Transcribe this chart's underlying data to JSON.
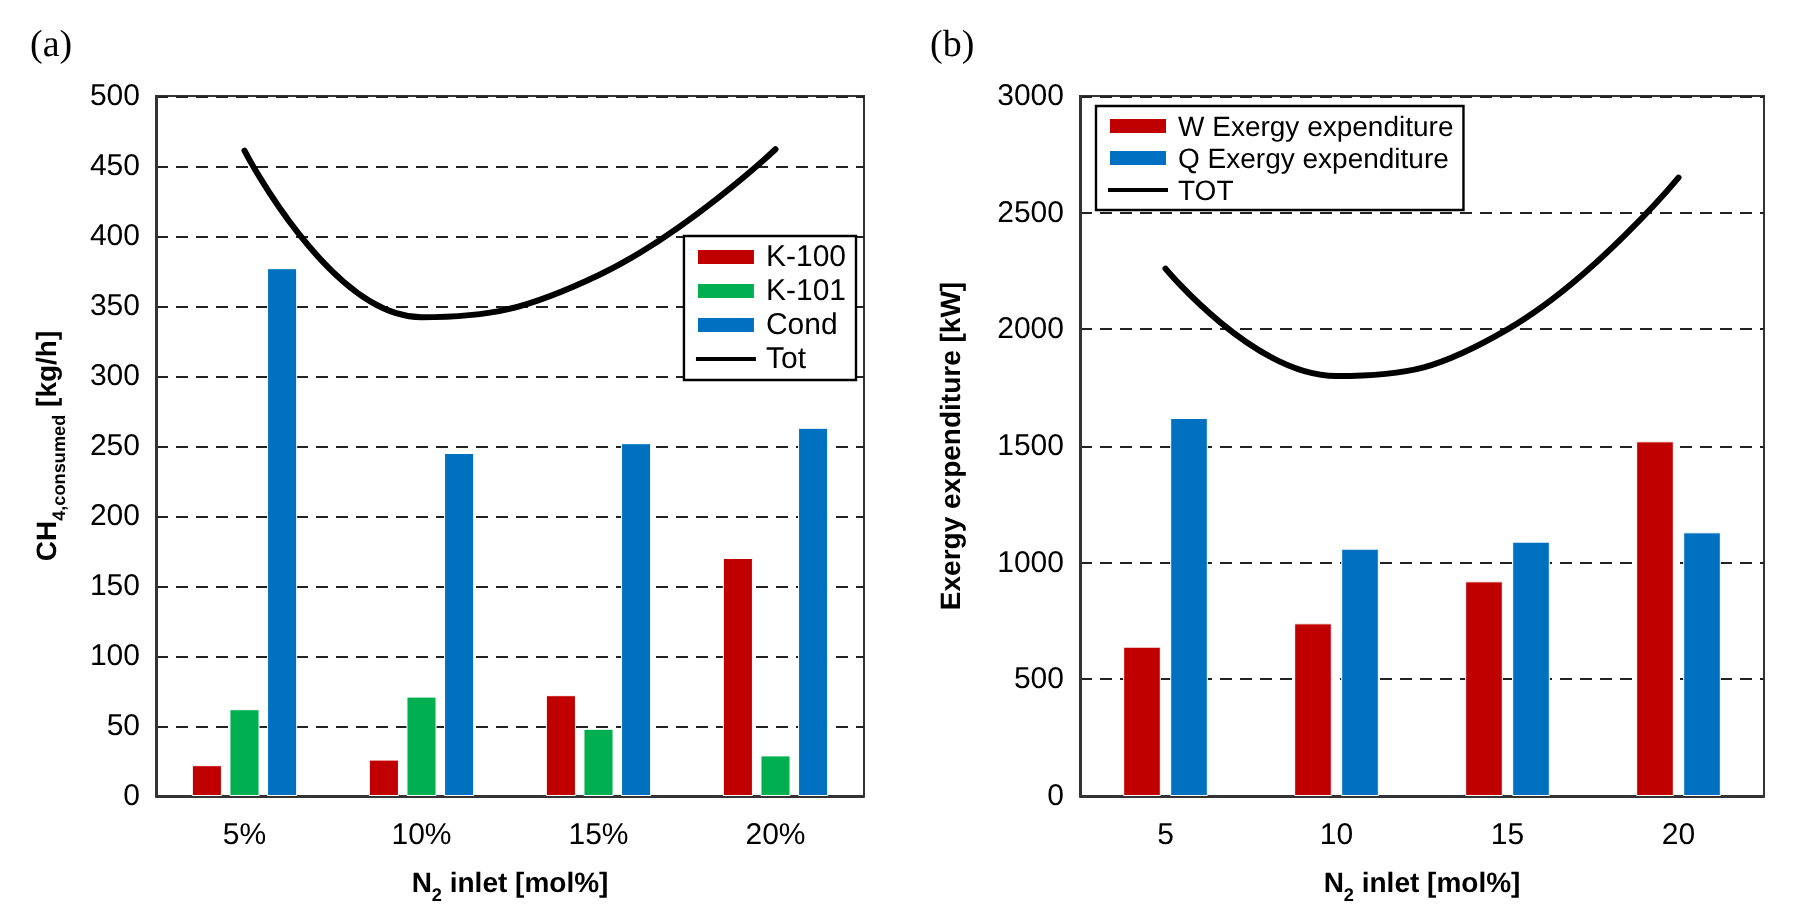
{
  "chart_data": [
    {
      "type": "bar",
      "title": "(a)",
      "xlabel": "N$_{2}$ inlet [mol%]",
      "ylabel": "CH$_{4,consumed}$ [kg/h]",
      "categories": [
        "5%",
        "10%",
        "15%",
        "20%"
      ],
      "series": [
        {
          "name": "K-100",
          "color": "#c00000",
          "values": [
            22,
            26,
            72,
            170
          ]
        },
        {
          "name": "K-101",
          "color": "#00b050",
          "values": [
            62,
            71,
            48,
            29
          ]
        },
        {
          "name": "Cond",
          "color": "#0070c0",
          "values": [
            377,
            245,
            252,
            263
          ]
        },
        {
          "name": "Tot",
          "type": "line",
          "color": "#000000",
          "values": [
            461,
            342,
            372,
            462
          ]
        }
      ],
      "ylim": [
        0,
        500
      ],
      "yticks": [
        0,
        50,
        100,
        150,
        200,
        250,
        300,
        350,
        400,
        450,
        500
      ],
      "grid": "y",
      "legend": "right",
      "marker": "none",
      "line_style": "solid"
    },
    {
      "type": "bar",
      "title": "(b)",
      "xlabel": "N$_{2}$ inlet [mol%]",
      "ylabel": "Exergy expenditure [kW]",
      "categories": [
        "5",
        "10",
        "15",
        "20"
      ],
      "series": [
        {
          "name": "W Exergy expenditure",
          "color": "#c00000",
          "values": [
            640,
            740,
            920,
            1520
          ]
        },
        {
          "name": "Q Exergy expenditure",
          "color": "#0070c0",
          "values": [
            1620,
            1060,
            1090,
            1130
          ]
        },
        {
          "name": "TOT",
          "type": "line",
          "color": "#000000",
          "values": [
            2260,
            1800,
            2000,
            2650
          ]
        }
      ],
      "ylim": [
        0,
        3000
      ],
      "yticks": [
        0,
        500,
        1000,
        1500,
        2000,
        2500,
        3000
      ],
      "grid": "y",
      "legend": "top left",
      "marker": "none",
      "line_style": "solid"
    }
  ]
}
